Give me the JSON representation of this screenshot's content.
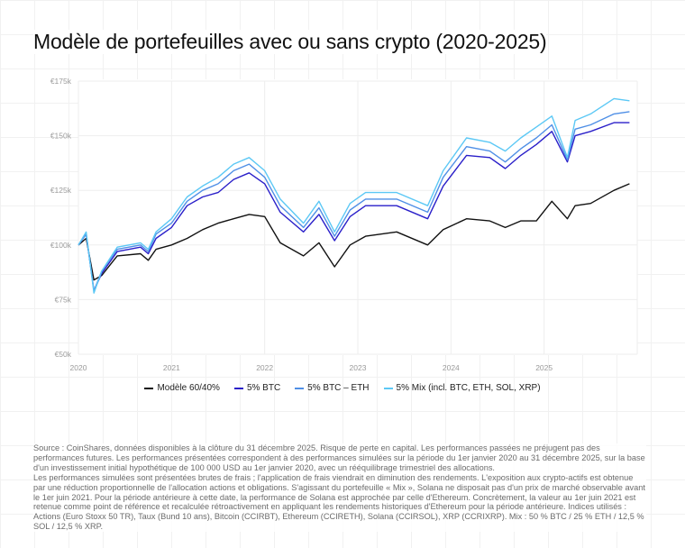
{
  "chart_data": {
    "type": "line",
    "title": "Modèle de portefeuilles avec ou sans crypto (2020-2025)",
    "y_ticks": [
      "€50k",
      "€75k",
      "€100k",
      "€125k",
      "€150k",
      "€175k"
    ],
    "ylim": [
      50,
      175
    ],
    "y_unit": "k€",
    "x_ticks": [
      "2020",
      "2021",
      "2022",
      "2023",
      "2024",
      "2025"
    ],
    "xlim": [
      "2020-01",
      "2025-12"
    ],
    "grid": true,
    "legend_position": "bottom",
    "x": [
      "2020-01",
      "2020-02",
      "2020-03",
      "2020-04",
      "2020-06",
      "2020-09",
      "2020-10",
      "2020-11",
      "2021-01",
      "2021-03",
      "2021-05",
      "2021-07",
      "2021-09",
      "2021-11",
      "2022-01",
      "2022-03",
      "2022-06",
      "2022-08",
      "2022-10",
      "2022-12",
      "2023-02",
      "2023-06",
      "2023-10",
      "2023-12",
      "2024-03",
      "2024-06",
      "2024-08",
      "2024-10",
      "2024-12",
      "2025-02",
      "2025-04",
      "2025-05",
      "2025-07",
      "2025-10",
      "2025-12"
    ],
    "series": [
      {
        "name": "Modèle 60/40%",
        "color": "#111111",
        "values": [
          100,
          103,
          84,
          86,
          95,
          96,
          93,
          98,
          100,
          103,
          107,
          110,
          112,
          114,
          113,
          101,
          95,
          101,
          90,
          100,
          104,
          106,
          100,
          107,
          112,
          111,
          108,
          111,
          111,
          120,
          112,
          118,
          119,
          125,
          128
        ]
      },
      {
        "name": "5% BTC",
        "color": "#2a1fc9",
        "values": [
          100,
          105,
          79,
          87,
          97,
          99,
          96,
          103,
          108,
          118,
          122,
          124,
          130,
          133,
          128,
          115,
          106,
          114,
          102,
          113,
          118,
          118,
          112,
          127,
          141,
          140,
          135,
          141,
          146,
          152,
          138,
          150,
          152,
          156,
          156
        ]
      },
      {
        "name": "5% BTC – ETH",
        "color": "#4f8fe6",
        "values": [
          100,
          105,
          79,
          88,
          98,
          100,
          97,
          105,
          110,
          120,
          125,
          128,
          134,
          137,
          131,
          118,
          108,
          117,
          104,
          116,
          121,
          121,
          115,
          131,
          145,
          143,
          138,
          144,
          149,
          155,
          139,
          153,
          155,
          160,
          161
        ]
      },
      {
        "name": "5% Mix (incl. BTC, ETH, SOL, XRP)",
        "color": "#5cc8f5",
        "values": [
          100,
          106,
          78,
          88,
          99,
          101,
          98,
          106,
          112,
          122,
          127,
          131,
          137,
          140,
          134,
          121,
          110,
          120,
          106,
          119,
          124,
          124,
          118,
          134,
          149,
          147,
          143,
          149,
          154,
          159,
          140,
          157,
          160,
          167,
          166
        ]
      }
    ]
  },
  "footnote": [
    "Source : CoinShares, données disponibles à la clôture du 31 décembre 2025. Risque de perte en capital. Les performances passées ne préjugent pas des performances futures. Les performances présentées correspondent à des performances simulées sur la période du 1er janvier 2020 au 31 décembre 2025, sur la base d'un investissement initial hypothétique de 100 000 USD au 1er janvier 2020, avec un rééquilibrage trimestriel des allocations.",
    "Les performances simulées sont présentées brutes de frais ; l'application de frais viendrait en diminution des rendements. L'exposition aux crypto-actifs est obtenue par une réduction proportionnelle de l'allocation actions et obligations. S'agissant du portefeuille « Mix », Solana ne disposait pas d'un prix de marché observable avant le 1er juin 2021. Pour la période antérieure à cette date, la performance de Solana est approchée par celle d'Ethereum. Concrètement, la valeur au 1er juin 2021 est retenue comme point de référence et recalculée rétroactivement en appliquant les rendements historiques d'Ethereum pour la période antérieure. Indices utilisés : Actions (Euro Stoxx 50 TR), Taux (Bund 10 ans), Bitcoin (CCIRBT), Ethereum (CCIRETH), Solana (CCIRSOL), XRP (CCRIXRP). Mix : 50 % BTC / 25 % ETH / 12,5 % SOL / 12,5 % XRP."
  ]
}
